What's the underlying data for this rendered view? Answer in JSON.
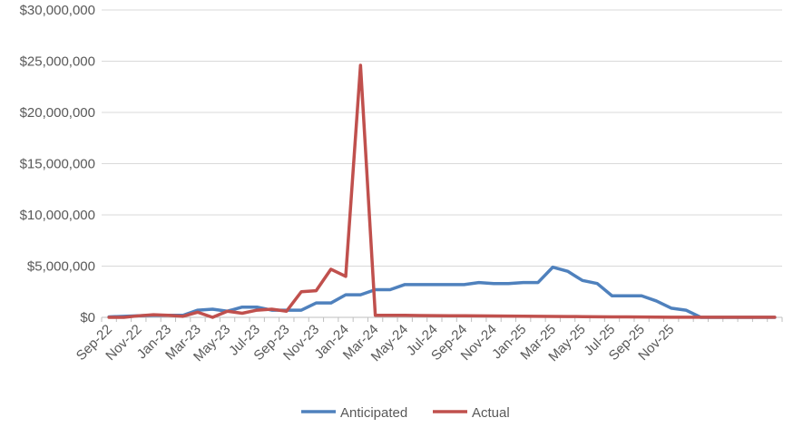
{
  "chart_data": {
    "type": "line",
    "title": "",
    "xlabel": "",
    "ylabel": "",
    "ylim": [
      0,
      30000000
    ],
    "yticks": [
      0,
      5000000,
      10000000,
      15000000,
      20000000,
      25000000,
      30000000
    ],
    "ytick_labels": [
      "$0",
      "$5,000,000",
      "$10,000,000",
      "$15,000,000",
      "$20,000,000",
      "$25,000,000",
      "$30,000,000"
    ],
    "x": [
      "Sep-22",
      "Oct-22",
      "Nov-22",
      "Dec-22",
      "Jan-23",
      "Feb-23",
      "Mar-23",
      "Apr-23",
      "May-23",
      "Jun-23",
      "Jul-23",
      "Aug-23",
      "Sep-23",
      "Oct-23",
      "Nov-23",
      "Dec-23",
      "Jan-24",
      "Feb-24",
      "Mar-24",
      "Apr-24",
      "May-24",
      "Jun-24",
      "Jul-24",
      "Aug-24",
      "Sep-24",
      "Oct-24",
      "Nov-24",
      "Dec-24",
      "Jan-25",
      "Feb-25",
      "Mar-25",
      "Apr-25",
      "May-25",
      "Jun-25",
      "Jul-25",
      "Aug-25",
      "Sep-25",
      "Oct-25",
      "Nov-25",
      "Dec-25",
      "Jan-26",
      "Feb-26",
      "Mar-26",
      "Apr-26",
      "May-26",
      "Jun-26"
    ],
    "xtick_labels": [
      "Sep-22",
      "Nov-22",
      "Jan-23",
      "Mar-23",
      "May-23",
      "Jul-23",
      "Sep-23",
      "Nov-23",
      "Jan-24",
      "Mar-24",
      "May-24",
      "Jul-24",
      "Sep-24",
      "Nov-24",
      "Jan-25",
      "Mar-25",
      "May-25",
      "Jul-25",
      "Sep-25",
      "Nov-25"
    ],
    "grid": true,
    "legend_position": "bottom",
    "series": [
      {
        "name": "Anticipated",
        "color": "#4F81BD",
        "values": [
          50000,
          100000,
          150000,
          200000,
          200000,
          200000,
          700000,
          800000,
          600000,
          1000000,
          1000000,
          700000,
          700000,
          700000,
          1400000,
          1400000,
          2200000,
          2200000,
          2700000,
          2700000,
          3200000,
          3200000,
          3200000,
          3200000,
          3200000,
          3400000,
          3300000,
          3300000,
          3400000,
          3400000,
          4900000,
          4500000,
          3600000,
          3300000,
          2100000,
          2100000,
          2100000,
          1600000,
          900000,
          700000,
          0,
          0,
          0,
          0,
          0,
          0
        ]
      },
      {
        "name": "Actual",
        "color": "#C0504D",
        "values": [
          0,
          0,
          150000,
          250000,
          200000,
          100000,
          500000,
          0,
          600000,
          400000,
          700000,
          800000,
          600000,
          2500000,
          2600000,
          4700000,
          4000000,
          24600000,
          200000,
          200000,
          200000,
          180000,
          170000,
          160000,
          150000,
          140000,
          130000,
          120000,
          110000,
          100000,
          90000,
          80000,
          70000,
          60000,
          50000,
          40000,
          30000,
          20000,
          10000,
          10000,
          10000,
          10000,
          10000,
          10000,
          10000,
          10000
        ]
      }
    ]
  }
}
